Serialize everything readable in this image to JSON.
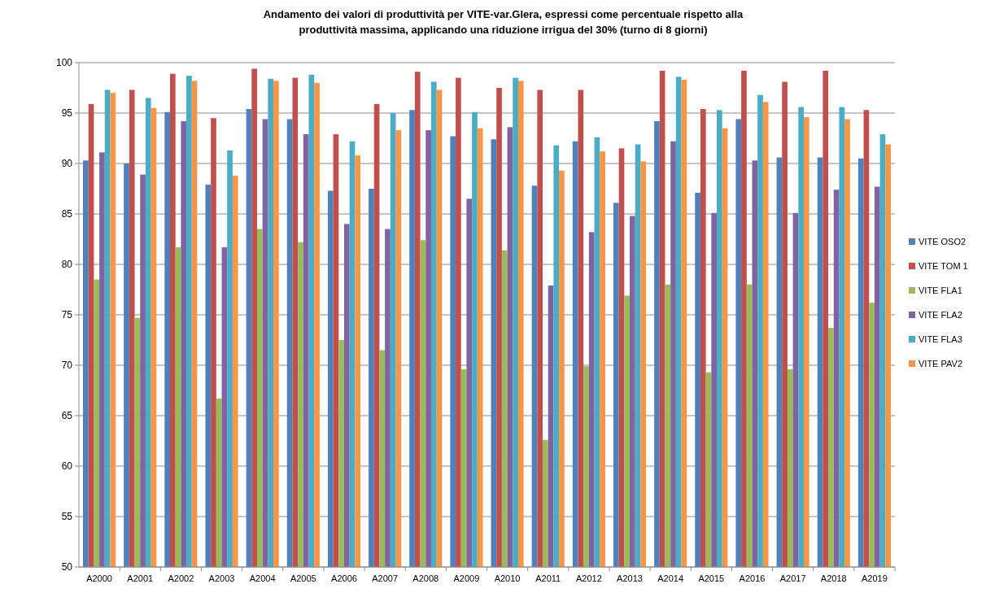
{
  "chart_data": {
    "type": "bar",
    "title": "Andamento dei valori di produttività per VITE-var.Glera, espressi come percentuale rispetto alla produttività massima, applicando una riduzione irrigua del 30% (turno di 8 giorni)",
    "categories": [
      "A2000",
      "A2001",
      "A2002",
      "A2003",
      "A2004",
      "A2005",
      "A2006",
      "A2007",
      "A2008",
      "A2009",
      "A2010",
      "A2011",
      "A2012",
      "A2013",
      "A2014",
      "A2015",
      "A2016",
      "A2017",
      "A2018",
      "A2019"
    ],
    "series": [
      {
        "name": "VITE OSO2",
        "color": "#4f81bd",
        "values": [
          90.3,
          90.0,
          95.1,
          87.9,
          95.4,
          94.4,
          87.3,
          87.5,
          95.3,
          92.7,
          92.4,
          87.8,
          92.2,
          86.1,
          94.2,
          87.1,
          94.4,
          90.6,
          90.6,
          90.5
        ]
      },
      {
        "name": "VITE TOM 1",
        "color": "#c0504d",
        "values": [
          95.9,
          97.3,
          98.9,
          94.5,
          99.4,
          98.5,
          92.9,
          95.9,
          99.1,
          98.5,
          97.5,
          97.3,
          97.3,
          91.5,
          99.2,
          95.4,
          99.2,
          98.1,
          99.2,
          95.3
        ]
      },
      {
        "name": "VITE FLA1",
        "color": "#9bbb59",
        "values": [
          78.5,
          74.7,
          81.7,
          66.7,
          83.5,
          82.2,
          72.5,
          71.5,
          82.4,
          69.6,
          81.4,
          62.6,
          69.9,
          76.9,
          78.0,
          69.3,
          78.0,
          69.6,
          73.7,
          76.2
        ]
      },
      {
        "name": "VITE FLA2",
        "color": "#8064a2",
        "values": [
          91.1,
          88.9,
          94.2,
          81.7,
          94.4,
          92.9,
          84.0,
          83.5,
          93.3,
          86.5,
          93.6,
          77.9,
          83.2,
          84.8,
          92.2,
          85.1,
          90.3,
          85.1,
          87.4,
          87.7
        ]
      },
      {
        "name": "VITE FLA3",
        "color": "#4bacc6",
        "values": [
          97.3,
          96.5,
          98.7,
          91.3,
          98.4,
          98.8,
          92.2,
          95.0,
          98.1,
          95.1,
          98.5,
          91.8,
          92.6,
          91.9,
          98.6,
          95.3,
          96.8,
          95.6,
          95.6,
          92.9
        ]
      },
      {
        "name": "VITE PAV2",
        "color": "#f79646",
        "values": [
          97.0,
          95.5,
          98.2,
          88.8,
          98.2,
          98.0,
          90.8,
          93.3,
          97.3,
          93.5,
          98.2,
          89.3,
          91.2,
          90.2,
          98.3,
          93.5,
          96.1,
          94.6,
          94.4,
          91.9
        ]
      }
    ],
    "ylim": [
      50,
      100
    ],
    "yticks": [
      50,
      55,
      60,
      65,
      70,
      75,
      80,
      85,
      90,
      95,
      100
    ],
    "grid": "y",
    "legend": "right"
  }
}
